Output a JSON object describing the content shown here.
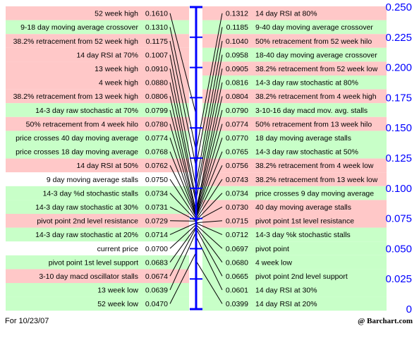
{
  "chart_data": {
    "type": "table",
    "current_price": 0.07,
    "ylim": [
      0,
      0.25
    ],
    "y_ticks": [
      "0.250",
      "0.225",
      "0.200",
      "0.175",
      "0.150",
      "0.125",
      "0.100",
      "0.075",
      "0.050",
      "0.025",
      "0"
    ],
    "row_colors": {
      "resistance": "#ffc8c8",
      "support": "#c8ffc8",
      "current": "#ffffff"
    },
    "line_color": "#000000",
    "axis_color": "#0000ff",
    "left": [
      {
        "label": "52 week high",
        "value": 0.161,
        "value_text": "0.1610",
        "kind": "resistance"
      },
      {
        "label": "9-18 day moving average crossover",
        "value": 0.131,
        "value_text": "0.1310",
        "kind": "support"
      },
      {
        "label": "38.2% retracement from 52 week high",
        "value": 0.1175,
        "value_text": "0.1175",
        "kind": "resistance"
      },
      {
        "label": "14 day RSI at 70%",
        "value": 0.1007,
        "value_text": "0.1007",
        "kind": "resistance"
      },
      {
        "label": "13 week high",
        "value": 0.091,
        "value_text": "0.0910",
        "kind": "resistance"
      },
      {
        "label": "4 week high",
        "value": 0.088,
        "value_text": "0.0880",
        "kind": "resistance"
      },
      {
        "label": "38.2% retracement from 13 week high",
        "value": 0.0806,
        "value_text": "0.0806",
        "kind": "resistance"
      },
      {
        "label": "14-3 day raw stochastic at 70%",
        "value": 0.0799,
        "value_text": "0.0799",
        "kind": "support"
      },
      {
        "label": "50% retracement from 4 week hilo",
        "value": 0.078,
        "value_text": "0.0780",
        "kind": "resistance"
      },
      {
        "label": "price crosses 40 day moving average",
        "value": 0.0774,
        "value_text": "0.0774",
        "kind": "support"
      },
      {
        "label": "price crosses 18 day moving average",
        "value": 0.0768,
        "value_text": "0.0768",
        "kind": "support"
      },
      {
        "label": "14 day RSI at 50%",
        "value": 0.0762,
        "value_text": "0.0762",
        "kind": "resistance"
      },
      {
        "label": "9 day moving average stalls",
        "value": 0.075,
        "value_text": "0.0750",
        "kind": "current"
      },
      {
        "label": "14-3 day %d stochastic stalls",
        "value": 0.0734,
        "value_text": "0.0734",
        "kind": "support"
      },
      {
        "label": "14-3 day raw stochastic at 30%",
        "value": 0.0731,
        "value_text": "0.0731",
        "kind": "support"
      },
      {
        "label": "pivot point 2nd level resistance",
        "value": 0.0729,
        "value_text": "0.0729",
        "kind": "resistance"
      },
      {
        "label": "14-3 day raw stochastic at 20%",
        "value": 0.0714,
        "value_text": "0.0714",
        "kind": "support"
      },
      {
        "label": "current price",
        "value": 0.07,
        "value_text": "0.0700",
        "kind": "current"
      },
      {
        "label": "pivot point 1st level support",
        "value": 0.0683,
        "value_text": "0.0683",
        "kind": "support"
      },
      {
        "label": "3-10 day macd oscillator stalls",
        "value": 0.0674,
        "value_text": "0.0674",
        "kind": "resistance"
      },
      {
        "label": "13 week low",
        "value": 0.0639,
        "value_text": "0.0639",
        "kind": "support"
      },
      {
        "label": "52 week low",
        "value": 0.047,
        "value_text": "0.0470",
        "kind": "support"
      }
    ],
    "right": [
      {
        "label": "14 day RSI at 80%",
        "value": 0.1312,
        "value_text": "0.1312",
        "kind": "resistance"
      },
      {
        "label": "9-40 day moving average crossover",
        "value": 0.1185,
        "value_text": "0.1185",
        "kind": "support"
      },
      {
        "label": "50% retracement from 52 week hilo",
        "value": 0.104,
        "value_text": "0.1040",
        "kind": "resistance"
      },
      {
        "label": "18-40 day moving average crossover",
        "value": 0.0958,
        "value_text": "0.0958",
        "kind": "support"
      },
      {
        "label": "38.2% retracement from 52 week low",
        "value": 0.0905,
        "value_text": "0.0905",
        "kind": "resistance"
      },
      {
        "label": "14-3 day raw stochastic at 80%",
        "value": 0.0816,
        "value_text": "0.0816",
        "kind": "support"
      },
      {
        "label": "38.2% retracement from 4 week high",
        "value": 0.0804,
        "value_text": "0.0804",
        "kind": "resistance"
      },
      {
        "label": "3-10-16 day macd mov. avg. stalls",
        "value": 0.079,
        "value_text": "0.0790",
        "kind": "support"
      },
      {
        "label": "50% retracement from 13 week hilo",
        "value": 0.0774,
        "value_text": "0.0774",
        "kind": "resistance"
      },
      {
        "label": "18 day moving average stalls",
        "value": 0.077,
        "value_text": "0.0770",
        "kind": "support"
      },
      {
        "label": "14-3 day raw stochastic at 50%",
        "value": 0.0765,
        "value_text": "0.0765",
        "kind": "support"
      },
      {
        "label": "38.2% retracement from 4 week low",
        "value": 0.0756,
        "value_text": "0.0756",
        "kind": "resistance"
      },
      {
        "label": "38.2% retracement from 13 week low",
        "value": 0.0743,
        "value_text": "0.0743",
        "kind": "resistance"
      },
      {
        "label": "price crosses 9 day moving average",
        "value": 0.0734,
        "value_text": "0.0734",
        "kind": "support"
      },
      {
        "label": "40 day moving average stalls",
        "value": 0.073,
        "value_text": "0.0730",
        "kind": "resistance"
      },
      {
        "label": "pivot point 1st level resistance",
        "value": 0.0715,
        "value_text": "0.0715",
        "kind": "resistance"
      },
      {
        "label": "14-3 day %k stochastic stalls",
        "value": 0.0712,
        "value_text": "0.0712",
        "kind": "support"
      },
      {
        "label": "pivot point",
        "value": 0.0697,
        "value_text": "0.0697",
        "kind": "support"
      },
      {
        "label": "4 week low",
        "value": 0.068,
        "value_text": "0.0680",
        "kind": "support"
      },
      {
        "label": "pivot point 2nd level support",
        "value": 0.0665,
        "value_text": "0.0665",
        "kind": "support"
      },
      {
        "label": "14 day RSI at 30%",
        "value": 0.0601,
        "value_text": "0.0601",
        "kind": "support"
      },
      {
        "label": "14 day RSI at 20%",
        "value": 0.0399,
        "value_text": "0.0399",
        "kind": "support"
      }
    ]
  },
  "footer": {
    "date_text": "For 10/23/07",
    "credit_text": "@ Barchart.com"
  }
}
